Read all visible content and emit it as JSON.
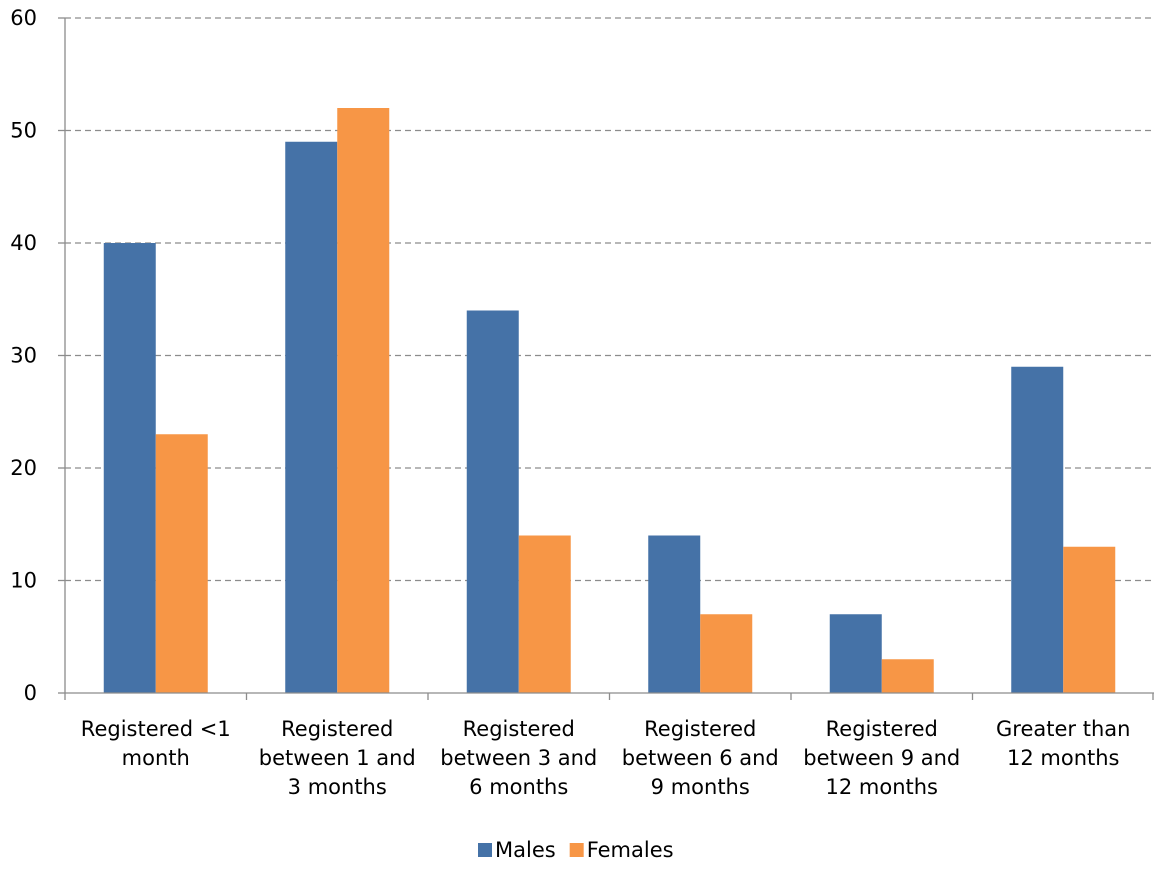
{
  "chart_data": {
    "type": "bar",
    "categories": [
      [
        "Registered <1",
        "month"
      ],
      [
        "Registered",
        "between 1 and",
        "3 months"
      ],
      [
        "Registered",
        "between 3 and",
        "6 months"
      ],
      [
        "Registered",
        "between 6 and",
        "9 months"
      ],
      [
        "Registered",
        "between 9 and",
        "12 months"
      ],
      [
        "Greater than",
        "12 months"
      ]
    ],
    "series": [
      {
        "name": "Males",
        "color": "#4572A7",
        "values": [
          40,
          49,
          34,
          14,
          7,
          29
        ]
      },
      {
        "name": "Females",
        "color": "#F79646",
        "values": [
          23,
          52,
          14,
          7,
          3,
          13
        ]
      }
    ],
    "title": "",
    "xlabel": "",
    "ylabel": "",
    "ylim": [
      0,
      60
    ],
    "yticks": [
      0,
      10,
      20,
      30,
      40,
      50,
      60
    ],
    "grid": "horizontal dashed",
    "legend": "bottom-center"
  }
}
